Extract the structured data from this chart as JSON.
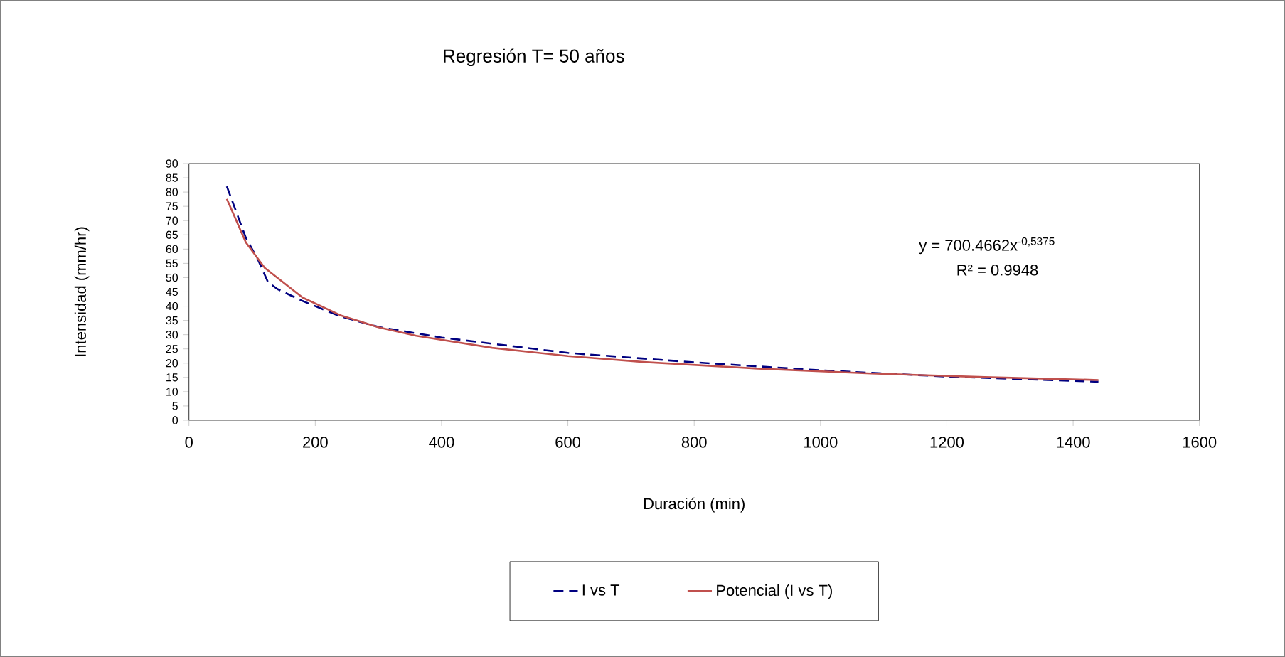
{
  "chart_data": {
    "type": "line",
    "title": "Regresión T= 50 años",
    "xlabel": "Duración (min)",
    "ylabel": "Intensidad (mm/hr)",
    "xlim": [
      0,
      1600
    ],
    "xticks": [
      0,
      200,
      400,
      600,
      800,
      1000,
      1200,
      1400,
      1600
    ],
    "ylim": [
      0,
      90
    ],
    "yticks": [
      0,
      5,
      10,
      15,
      20,
      25,
      30,
      35,
      40,
      45,
      50,
      55,
      60,
      65,
      70,
      75,
      80,
      85,
      90
    ],
    "grid": false,
    "legend": "bottom",
    "annotations": [
      "y = 700.4662x$^{-0,5375}$",
      "R² = 0.9948"
    ],
    "series": [
      {
        "name": "I vs T",
        "color": "#000080",
        "line_style": "dashed",
        "x": [
          60,
          90,
          110,
          125,
          140,
          180,
          240,
          300,
          400,
          600,
          800,
          1000,
          1200,
          1440
        ],
        "values": [
          82,
          64,
          56,
          48.5,
          46,
          41.8,
          36.4,
          32.7,
          29,
          23.6,
          20.3,
          17.5,
          15.3,
          13.5
        ]
      },
      {
        "name": "Potencial (I vs T)",
        "color": "#c0504d",
        "line_style": "solid",
        "x": [
          60,
          90,
          120,
          180,
          240,
          300,
          360,
          480,
          600,
          720,
          900,
          1080,
          1260,
          1440
        ],
        "values": [
          77.6,
          62.4,
          53.4,
          43.0,
          36.8,
          32.6,
          29.6,
          25.4,
          22.5,
          20.4,
          18.1,
          16.4,
          15.1,
          14.1
        ]
      }
    ]
  }
}
